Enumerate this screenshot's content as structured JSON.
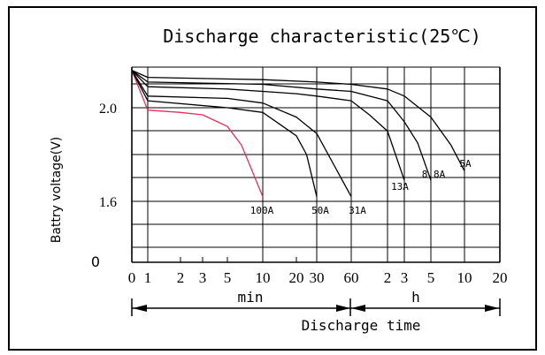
{
  "chart_data": {
    "type": "line",
    "title": "Discharge characteristic(25℃)",
    "ylabel": "Battry voltage(V)",
    "xlabel": "Discharge time",
    "y_ticks": [
      "2.0",
      "1.6",
      "0"
    ],
    "x_ticks": [
      "0",
      "1",
      "2",
      "3",
      "5",
      "10",
      "20",
      "30",
      "60",
      "2",
      "3",
      "5",
      "10",
      "20"
    ],
    "x_unit_min": "min",
    "x_unit_h": "h",
    "series": [
      {
        "name": "100A",
        "color": "#e0305a",
        "values": [
          [
            0,
            2.16
          ],
          [
            1,
            1.99
          ],
          [
            2,
            1.98
          ],
          [
            3,
            1.97
          ],
          [
            5,
            1.92
          ],
          [
            7,
            1.84
          ],
          [
            10,
            1.62
          ]
        ]
      },
      {
        "name": "50A",
        "color": "#000000",
        "values": [
          [
            0,
            2.16
          ],
          [
            1,
            2.03
          ],
          [
            5,
            2.0
          ],
          [
            10,
            1.98
          ],
          [
            20,
            1.88
          ],
          [
            25,
            1.8
          ],
          [
            30,
            1.62
          ]
        ]
      },
      {
        "name": "31A",
        "color": "#000000",
        "values": [
          [
            0,
            2.16
          ],
          [
            1,
            2.05
          ],
          [
            5,
            2.04
          ],
          [
            10,
            2.02
          ],
          [
            20,
            1.96
          ],
          [
            30,
            1.89
          ],
          [
            60,
            1.62
          ]
        ]
      },
      {
        "name": "13A",
        "color": "#000000",
        "values": [
          [
            0,
            2.16
          ],
          [
            1,
            2.09
          ],
          [
            5,
            2.08
          ],
          [
            10,
            2.07
          ],
          [
            20,
            2.06
          ],
          [
            30,
            2.05
          ],
          [
            60,
            2.03
          ],
          [
            90,
            1.97
          ],
          [
            120,
            1.9
          ],
          [
            180,
            1.69
          ]
        ]
      },
      {
        "name": "8.8A",
        "color": "#000000",
        "values": [
          [
            0,
            2.16
          ],
          [
            1,
            2.11
          ],
          [
            10,
            2.1
          ],
          [
            30,
            2.08
          ],
          [
            60,
            2.07
          ],
          [
            120,
            2.03
          ],
          [
            180,
            1.94
          ],
          [
            240,
            1.85
          ],
          [
            300,
            1.69
          ]
        ]
      },
      {
        "name": "5A",
        "color": "#000000",
        "values": [
          [
            0,
            2.16
          ],
          [
            1,
            2.13
          ],
          [
            10,
            2.12
          ],
          [
            30,
            2.11
          ],
          [
            60,
            2.1
          ],
          [
            120,
            2.08
          ],
          [
            180,
            2.05
          ],
          [
            300,
            1.96
          ],
          [
            480,
            1.84
          ],
          [
            600,
            1.73
          ]
        ]
      }
    ]
  }
}
